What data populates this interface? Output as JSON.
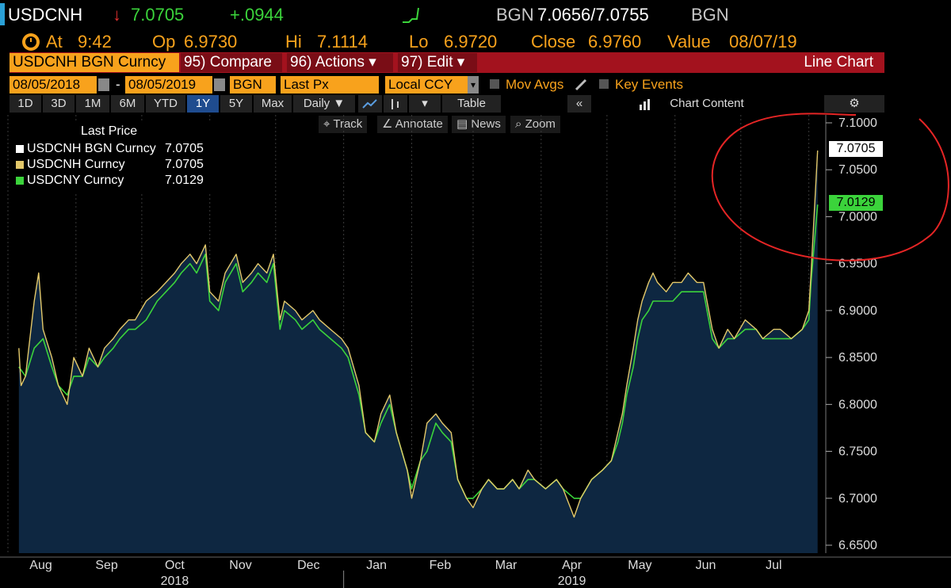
{
  "header": {
    "ticker": "USDCNH",
    "arrow": "↓",
    "last": "7.0705",
    "change": "+.0944",
    "source": "BGN",
    "bid_ask": "7.0656/7.0755",
    "source2": "BGN",
    "at_label": "At",
    "time": "9:42",
    "op_label": "Op",
    "op": "6.9730",
    "hi_label": "Hi",
    "hi": "7.1114",
    "lo_label": "Lo",
    "lo": "6.9720",
    "close_label": "Close",
    "close": "6.9760",
    "value_label": "Value",
    "value_date": "08/07/19"
  },
  "toolbar": {
    "security": "USDCNH BGN Curncy",
    "compare": "95) Compare",
    "actions": "96) Actions ▾",
    "edit": "97) Edit ▾",
    "chart_type": "Line Chart",
    "start_date": "08/05/2018",
    "dash": "-",
    "end_date": "08/05/2019",
    "source": "BGN",
    "field": "Last Px",
    "currency": "Local CCY",
    "mov_avgs": "Mov Avgs",
    "key_events": "Key Events",
    "tabs": [
      "1D",
      "3D",
      "1M",
      "6M",
      "YTD",
      "1Y",
      "5Y",
      "Max"
    ],
    "active_tab": "1Y",
    "period": "Daily ▼",
    "table": "Table",
    "chart_content": "Chart Content",
    "track": "Track",
    "annotate": "Annotate",
    "news": "News",
    "zoom": "Zoom"
  },
  "colors": {
    "accent_orange": "#f8a21c",
    "panel_red": "#a3121e",
    "series_white": "#ffffff",
    "series_yellow": "#e3c86a",
    "series_green": "#3bd33b",
    "area_fill": "#0e2741"
  },
  "chart_data": {
    "type": "line",
    "legend_title": "Last Price",
    "series": [
      {
        "name": "USDCNH BGN Curncy",
        "last": "7.0705",
        "color": "#ffffff"
      },
      {
        "name": "USDCNH Curncy",
        "last": "7.0705",
        "color": "#e3c86a",
        "points": [
          [
            "2018-08-06",
            6.86
          ],
          [
            "2018-08-07",
            6.82
          ],
          [
            "2018-08-09",
            6.83
          ],
          [
            "2018-08-13",
            6.91
          ],
          [
            "2018-08-15",
            6.94
          ],
          [
            "2018-08-17",
            6.88
          ],
          [
            "2018-08-21",
            6.85
          ],
          [
            "2018-08-24",
            6.82
          ],
          [
            "2018-08-28",
            6.8
          ],
          [
            "2018-08-31",
            6.85
          ],
          [
            "2018-09-04",
            6.83
          ],
          [
            "2018-09-07",
            6.86
          ],
          [
            "2018-09-11",
            6.84
          ],
          [
            "2018-09-14",
            6.86
          ],
          [
            "2018-09-18",
            6.87
          ],
          [
            "2018-09-21",
            6.88
          ],
          [
            "2018-09-25",
            6.89
          ],
          [
            "2018-09-28",
            6.89
          ],
          [
            "2018-10-03",
            6.91
          ],
          [
            "2018-10-08",
            6.92
          ],
          [
            "2018-10-12",
            6.93
          ],
          [
            "2018-10-16",
            6.94
          ],
          [
            "2018-10-19",
            6.95
          ],
          [
            "2018-10-23",
            6.96
          ],
          [
            "2018-10-26",
            6.95
          ],
          [
            "2018-10-30",
            6.97
          ],
          [
            "2018-11-01",
            6.92
          ],
          [
            "2018-11-05",
            6.91
          ],
          [
            "2018-11-08",
            6.94
          ],
          [
            "2018-11-13",
            6.96
          ],
          [
            "2018-11-16",
            6.93
          ],
          [
            "2018-11-20",
            6.94
          ],
          [
            "2018-11-23",
            6.95
          ],
          [
            "2018-11-27",
            6.94
          ],
          [
            "2018-11-30",
            6.96
          ],
          [
            "2018-12-03",
            6.89
          ],
          [
            "2018-12-05",
            6.91
          ],
          [
            "2018-12-10",
            6.9
          ],
          [
            "2018-12-13",
            6.89
          ],
          [
            "2018-12-18",
            6.9
          ],
          [
            "2018-12-21",
            6.89
          ],
          [
            "2018-12-26",
            6.88
          ],
          [
            "2018-12-31",
            6.87
          ],
          [
            "2019-01-03",
            6.86
          ],
          [
            "2019-01-08",
            6.82
          ],
          [
            "2019-01-11",
            6.77
          ],
          [
            "2019-01-15",
            6.76
          ],
          [
            "2019-01-18",
            6.79
          ],
          [
            "2019-01-22",
            6.81
          ],
          [
            "2019-01-25",
            6.77
          ],
          [
            "2019-01-30",
            6.73
          ],
          [
            "2019-02-01",
            6.7
          ],
          [
            "2019-02-05",
            6.74
          ],
          [
            "2019-02-08",
            6.78
          ],
          [
            "2019-02-12",
            6.79
          ],
          [
            "2019-02-15",
            6.78
          ],
          [
            "2019-02-19",
            6.77
          ],
          [
            "2019-02-22",
            6.72
          ],
          [
            "2019-02-26",
            6.7
          ],
          [
            "2019-03-01",
            6.69
          ],
          [
            "2019-03-05",
            6.71
          ],
          [
            "2019-03-08",
            6.72
          ],
          [
            "2019-03-12",
            6.71
          ],
          [
            "2019-03-15",
            6.71
          ],
          [
            "2019-03-19",
            6.72
          ],
          [
            "2019-03-22",
            6.71
          ],
          [
            "2019-03-26",
            6.73
          ],
          [
            "2019-03-29",
            6.72
          ],
          [
            "2019-04-03",
            6.71
          ],
          [
            "2019-04-08",
            6.72
          ],
          [
            "2019-04-11",
            6.71
          ],
          [
            "2019-04-16",
            6.68
          ],
          [
            "2019-04-19",
            6.7
          ],
          [
            "2019-04-24",
            6.72
          ],
          [
            "2019-04-29",
            6.73
          ],
          [
            "2019-05-03",
            6.74
          ],
          [
            "2019-05-06",
            6.77
          ],
          [
            "2019-05-08",
            6.79
          ],
          [
            "2019-05-10",
            6.82
          ],
          [
            "2019-05-13",
            6.86
          ],
          [
            "2019-05-15",
            6.89
          ],
          [
            "2019-05-17",
            6.91
          ],
          [
            "2019-05-20",
            6.93
          ],
          [
            "2019-05-22",
            6.94
          ],
          [
            "2019-05-24",
            6.93
          ],
          [
            "2019-05-28",
            6.92
          ],
          [
            "2019-05-31",
            6.93
          ],
          [
            "2019-06-04",
            6.93
          ],
          [
            "2019-06-07",
            6.94
          ],
          [
            "2019-06-11",
            6.93
          ],
          [
            "2019-06-14",
            6.93
          ],
          [
            "2019-06-18",
            6.88
          ],
          [
            "2019-06-21",
            6.86
          ],
          [
            "2019-06-25",
            6.88
          ],
          [
            "2019-06-28",
            6.87
          ],
          [
            "2019-07-03",
            6.89
          ],
          [
            "2019-07-08",
            6.88
          ],
          [
            "2019-07-11",
            6.87
          ],
          [
            "2019-07-16",
            6.88
          ],
          [
            "2019-07-19",
            6.88
          ],
          [
            "2019-07-24",
            6.87
          ],
          [
            "2019-07-29",
            6.88
          ],
          [
            "2019-08-01",
            6.9
          ],
          [
            "2019-08-02",
            6.94
          ],
          [
            "2019-08-05",
            7.0705
          ]
        ]
      },
      {
        "name": "USDCNY Curncy",
        "last": "7.0129",
        "color": "#3bd33b",
        "points": [
          [
            "2018-08-06",
            6.84
          ],
          [
            "2018-08-09",
            6.83
          ],
          [
            "2018-08-13",
            6.86
          ],
          [
            "2018-08-17",
            6.87
          ],
          [
            "2018-08-21",
            6.84
          ],
          [
            "2018-08-24",
            6.82
          ],
          [
            "2018-08-28",
            6.81
          ],
          [
            "2018-08-31",
            6.83
          ],
          [
            "2018-09-04",
            6.83
          ],
          [
            "2018-09-07",
            6.85
          ],
          [
            "2018-09-11",
            6.84
          ],
          [
            "2018-09-14",
            6.85
          ],
          [
            "2018-09-18",
            6.86
          ],
          [
            "2018-09-21",
            6.87
          ],
          [
            "2018-09-25",
            6.88
          ],
          [
            "2018-09-28",
            6.88
          ],
          [
            "2018-10-03",
            6.89
          ],
          [
            "2018-10-08",
            6.91
          ],
          [
            "2018-10-12",
            6.92
          ],
          [
            "2018-10-16",
            6.93
          ],
          [
            "2018-10-19",
            6.94
          ],
          [
            "2018-10-23",
            6.95
          ],
          [
            "2018-10-26",
            6.94
          ],
          [
            "2018-10-30",
            6.96
          ],
          [
            "2018-11-01",
            6.91
          ],
          [
            "2018-11-05",
            6.9
          ],
          [
            "2018-11-08",
            6.93
          ],
          [
            "2018-11-13",
            6.95
          ],
          [
            "2018-11-16",
            6.92
          ],
          [
            "2018-11-20",
            6.93
          ],
          [
            "2018-11-23",
            6.94
          ],
          [
            "2018-11-27",
            6.93
          ],
          [
            "2018-11-30",
            6.95
          ],
          [
            "2018-12-03",
            6.88
          ],
          [
            "2018-12-05",
            6.9
          ],
          [
            "2018-12-10",
            6.89
          ],
          [
            "2018-12-13",
            6.88
          ],
          [
            "2018-12-18",
            6.89
          ],
          [
            "2018-12-21",
            6.88
          ],
          [
            "2018-12-26",
            6.87
          ],
          [
            "2018-12-31",
            6.86
          ],
          [
            "2019-01-03",
            6.85
          ],
          [
            "2019-01-08",
            6.81
          ],
          [
            "2019-01-11",
            6.77
          ],
          [
            "2019-01-15",
            6.76
          ],
          [
            "2019-01-18",
            6.78
          ],
          [
            "2019-01-22",
            6.8
          ],
          [
            "2019-01-25",
            6.77
          ],
          [
            "2019-01-30",
            6.73
          ],
          [
            "2019-02-01",
            6.71
          ],
          [
            "2019-02-05",
            6.74
          ],
          [
            "2019-02-08",
            6.75
          ],
          [
            "2019-02-12",
            6.78
          ],
          [
            "2019-02-15",
            6.77
          ],
          [
            "2019-02-19",
            6.76
          ],
          [
            "2019-02-22",
            6.72
          ],
          [
            "2019-02-26",
            6.7
          ],
          [
            "2019-03-01",
            6.7
          ],
          [
            "2019-03-05",
            6.71
          ],
          [
            "2019-03-08",
            6.72
          ],
          [
            "2019-03-12",
            6.71
          ],
          [
            "2019-03-15",
            6.71
          ],
          [
            "2019-03-19",
            6.72
          ],
          [
            "2019-03-22",
            6.71
          ],
          [
            "2019-03-26",
            6.72
          ],
          [
            "2019-03-29",
            6.72
          ],
          [
            "2019-04-03",
            6.71
          ],
          [
            "2019-04-08",
            6.72
          ],
          [
            "2019-04-11",
            6.71
          ],
          [
            "2019-04-16",
            6.7
          ],
          [
            "2019-04-19",
            6.7
          ],
          [
            "2019-04-24",
            6.72
          ],
          [
            "2019-04-29",
            6.73
          ],
          [
            "2019-05-03",
            6.74
          ],
          [
            "2019-05-06",
            6.76
          ],
          [
            "2019-05-08",
            6.78
          ],
          [
            "2019-05-10",
            6.81
          ],
          [
            "2019-05-13",
            6.84
          ],
          [
            "2019-05-15",
            6.87
          ],
          [
            "2019-05-17",
            6.89
          ],
          [
            "2019-05-20",
            6.9
          ],
          [
            "2019-05-22",
            6.91
          ],
          [
            "2019-05-24",
            6.91
          ],
          [
            "2019-05-28",
            6.91
          ],
          [
            "2019-05-31",
            6.91
          ],
          [
            "2019-06-04",
            6.92
          ],
          [
            "2019-06-07",
            6.92
          ],
          [
            "2019-06-11",
            6.92
          ],
          [
            "2019-06-14",
            6.92
          ],
          [
            "2019-06-18",
            6.87
          ],
          [
            "2019-06-21",
            6.86
          ],
          [
            "2019-06-25",
            6.87
          ],
          [
            "2019-06-28",
            6.87
          ],
          [
            "2019-07-03",
            6.88
          ],
          [
            "2019-07-08",
            6.88
          ],
          [
            "2019-07-11",
            6.87
          ],
          [
            "2019-07-16",
            6.87
          ],
          [
            "2019-07-19",
            6.87
          ],
          [
            "2019-07-24",
            6.87
          ],
          [
            "2019-07-29",
            6.88
          ],
          [
            "2019-08-01",
            6.89
          ],
          [
            "2019-08-02",
            6.93
          ],
          [
            "2019-08-05",
            7.0129
          ]
        ]
      }
    ],
    "y_ticks": [
      "7.1000",
      "7.0500",
      "7.0000",
      "6.9500",
      "6.9000",
      "6.8500",
      "6.8000",
      "6.7500",
      "6.7000",
      "6.6500"
    ],
    "ylim": [
      6.64,
      7.11
    ],
    "x_ticks": [
      "Aug",
      "Sep",
      "Oct",
      "Nov",
      "Dec",
      "Jan",
      "Feb",
      "Mar",
      "Apr",
      "May",
      "Jun",
      "Jul"
    ],
    "x_years": [
      "2018",
      "2019"
    ],
    "x_range": [
      "2018-08-01",
      "2019-08-08"
    ],
    "y_axis_side": "right",
    "legend_position": "top-left"
  }
}
